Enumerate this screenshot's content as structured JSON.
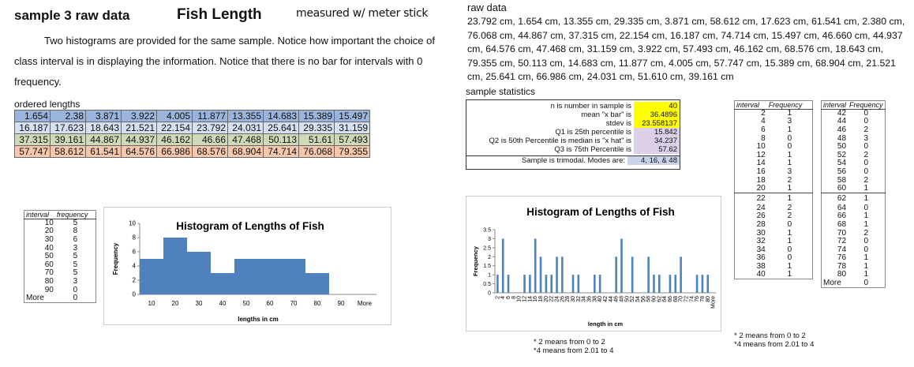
{
  "header": {
    "title": "sample 3 raw data",
    "subject": "Fish Length",
    "measured": "measured w/ meter stick"
  },
  "intro": {
    "text": "Two histograms are provided for the same sample.  Notice how important the choice of class interval is in displaying the information.    Notice that there  is no bar for intervals with 0 frequency."
  },
  "ordered": {
    "label": "ordered lengths",
    "rows": [
      [
        "1.654",
        "2.38",
        "3.871",
        "3.922",
        "4.005",
        "11.877",
        "13.355",
        "14.683",
        "15.389",
        "15.497"
      ],
      [
        "16.187",
        "17.623",
        "18.643",
        "21.521",
        "22.154",
        "23.792",
        "24.031",
        "25.641",
        "29.335",
        "31.159"
      ],
      [
        "37.315",
        "39.161",
        "44.867",
        "44.937",
        "46.162",
        "46.66",
        "47.468",
        "50.113",
        "51.61",
        "57.493"
      ],
      [
        "57.747",
        "58.612",
        "61.541",
        "64.576",
        "66.986",
        "68.576",
        "68.904",
        "74.714",
        "76.068",
        "79.355"
      ]
    ]
  },
  "raw": {
    "label": "raw data",
    "text": "23.792 cm, 1.654 cm, 13.355 cm, 29.335 cm, 3.871 cm, 58.612 cm, 17.623 cm, 61.541 cm, 2.380 cm, 76.068 cm, 44.867 cm, 37.315 cm, 22.154 cm, 16.187 cm, 74.714 cm, 15.497 cm, 46.660 cm, 44.937 cm, 64.576 cm, 47.468 cm, 31.159 cm, 3.922 cm, 57.493 cm, 46.162 cm, 68.576 cm, 18.643 cm, 79.355 cm, 50.113 cm, 14.683 cm, 11.877 cm, 4.005 cm, 57.747 cm, 15.389 cm, 68.904 cm, 21.521 cm, 25.641 cm, 66.986 cm, 24.031 cm, 51.610 cm, 39.161 cm"
  },
  "stats": {
    "label": "sample statistics",
    "rows": [
      {
        "label": "n is number in sample is",
        "value": "40",
        "color": "#ffff00"
      },
      {
        "label": "mean \"x bar\" is",
        "value": "36.4896",
        "color": "#ffff00"
      },
      {
        "label": "stdev is",
        "value": "23.558137",
        "color": "#ffff00"
      },
      {
        "label": "Q1 is 25th percentile is",
        "value": "15.842",
        "color": "#dcd0e8"
      },
      {
        "label": "Q2 is 50th Percentile  is median is \"x hat\" is",
        "value": "34.237",
        "color": "#dcd0e8"
      },
      {
        "label": "Q3 is 75th Percentile is",
        "value": "57.62",
        "color": "#dcd0e8"
      }
    ],
    "note": {
      "label": "Sample is trimodal.  Modes are:",
      "value": "4, 16, & 48",
      "color": "#c9d3e9"
    }
  },
  "freq_small": {
    "h1": "interval",
    "h2": "frequency",
    "rows": [
      [
        "10",
        "5"
      ],
      [
        "20",
        "8"
      ],
      [
        "30",
        "6"
      ],
      [
        "40",
        "3"
      ],
      [
        "50",
        "5"
      ],
      [
        "60",
        "5"
      ],
      [
        "70",
        "5"
      ],
      [
        "80",
        "3"
      ],
      [
        "90",
        "0"
      ],
      [
        "More",
        "0"
      ]
    ]
  },
  "freq_two_1": {
    "h1": "interval",
    "h2": "Frequency",
    "rows": [
      [
        "2",
        "1"
      ],
      [
        "4",
        "3"
      ],
      [
        "6",
        "1"
      ],
      [
        "8",
        "0"
      ],
      [
        "10",
        "0"
      ],
      [
        "12",
        "1"
      ],
      [
        "14",
        "1"
      ],
      [
        "16",
        "3"
      ],
      [
        "18",
        "2"
      ],
      [
        "20",
        "1"
      ],
      [
        "22",
        "1"
      ],
      [
        "24",
        "2"
      ],
      [
        "26",
        "2"
      ],
      [
        "28",
        "0"
      ],
      [
        "30",
        "1"
      ],
      [
        "32",
        "1"
      ],
      [
        "34",
        "0"
      ],
      [
        "36",
        "0"
      ],
      [
        "38",
        "1"
      ],
      [
        "40",
        "1"
      ]
    ]
  },
  "freq_two_2": {
    "h1": "interval",
    "h2": "Frequency",
    "rows": [
      [
        "42",
        "0"
      ],
      [
        "44",
        "0"
      ],
      [
        "46",
        "2"
      ],
      [
        "48",
        "3"
      ],
      [
        "50",
        "0"
      ],
      [
        "52",
        "2"
      ],
      [
        "54",
        "0"
      ],
      [
        "56",
        "0"
      ],
      [
        "58",
        "2"
      ],
      [
        "60",
        "1"
      ],
      [
        "62",
        "1"
      ],
      [
        "64",
        "0"
      ],
      [
        "66",
        "1"
      ],
      [
        "68",
        "1"
      ],
      [
        "70",
        "2"
      ],
      [
        "72",
        "0"
      ],
      [
        "74",
        "0"
      ],
      [
        "76",
        "1"
      ],
      [
        "78",
        "1"
      ],
      [
        "80",
        "1"
      ],
      [
        "More",
        "0"
      ]
    ]
  },
  "notes": {
    "a": "2 means from 0 to 2",
    "b": "4 means from 2.01 to 4"
  },
  "colors": {
    "bar": "#4f81bd",
    "tbl_r0": "#9bb4dc",
    "tbl_r1": "#d5e0f1",
    "tbl_r2": "#cfd9b7",
    "tbl_r3": "#f6c7ad"
  },
  "chart_data": [
    {
      "type": "bar",
      "title": "Histogram of Lengths of Fish",
      "xlabel": "lengths in cm",
      "ylabel": "Frequency",
      "categories": [
        "10",
        "20",
        "30",
        "40",
        "50",
        "60",
        "70",
        "80",
        "90",
        "More"
      ],
      "values": [
        5,
        8,
        6,
        3,
        5,
        5,
        5,
        3,
        0,
        0
      ],
      "ylim": [
        0,
        10
      ],
      "yticks": [
        "0",
        "2",
        "4",
        "6",
        "8",
        "10"
      ]
    },
    {
      "type": "bar",
      "title": "Histogram of Lengths of Fish",
      "xlabel": "length in cm",
      "ylabel": "Frequency",
      "categories": [
        "2",
        "4",
        "6",
        "8",
        "10",
        "12",
        "14",
        "16",
        "18",
        "20",
        "22",
        "24",
        "26",
        "28",
        "30",
        "32",
        "34",
        "36",
        "38",
        "40",
        "42",
        "44",
        "46",
        "48",
        "50",
        "52",
        "54",
        "56",
        "58",
        "60",
        "62",
        "64",
        "66",
        "68",
        "70",
        "72",
        "74",
        "76",
        "78",
        "80",
        "More"
      ],
      "values": [
        1,
        3,
        1,
        0,
        0,
        1,
        1,
        3,
        2,
        1,
        1,
        2,
        2,
        0,
        1,
        1,
        0,
        0,
        1,
        1,
        0,
        0,
        2,
        3,
        0,
        2,
        0,
        0,
        2,
        1,
        1,
        0,
        1,
        1,
        2,
        0,
        0,
        1,
        1,
        1,
        0
      ],
      "ylim": [
        0,
        3.5
      ],
      "yticks": [
        "0",
        "0.5",
        "1",
        "1.5",
        "2",
        "2.5",
        "3",
        "3.5"
      ]
    }
  ]
}
